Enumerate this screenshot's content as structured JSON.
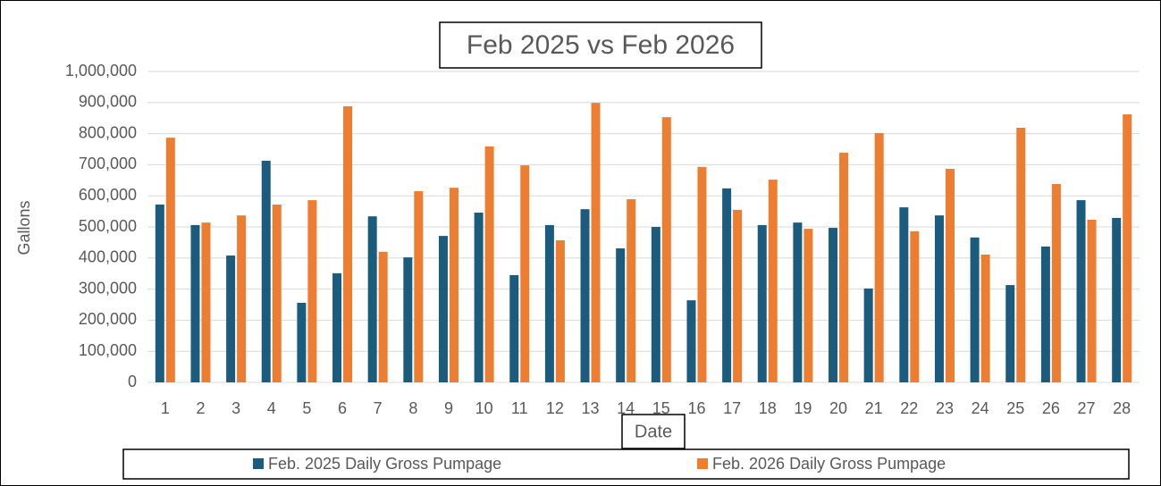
{
  "chart_data": {
    "type": "bar",
    "title": "Feb 2025 vs Feb 2026",
    "x_label": "Date",
    "y_label": "Gallons",
    "categories": [
      "1",
      "2",
      "3",
      "4",
      "5",
      "6",
      "7",
      "8",
      "9",
      "10",
      "11",
      "12",
      "13",
      "14",
      "15",
      "16",
      "17",
      "18",
      "19",
      "20",
      "21",
      "22",
      "23",
      "24",
      "25",
      "26",
      "27",
      "28"
    ],
    "series": [
      {
        "name": "Feb. 2025 Daily Gross Pumpage",
        "color": "#1b5c7e",
        "values": [
          572000,
          506000,
          408000,
          713000,
          256000,
          351000,
          534000,
          402000,
          471000,
          546000,
          345000,
          506000,
          557000,
          431000,
          500000,
          264000,
          624000,
          506000,
          514000,
          497000,
          302000,
          563000,
          537000,
          466000,
          313000,
          437000,
          586000,
          529000
        ]
      },
      {
        "name": "Feb. 2026 Daily Gross Pumpage",
        "color": "#ed7d31",
        "values": [
          787000,
          514000,
          537000,
          572000,
          586000,
          888000,
          420000,
          615000,
          626000,
          759000,
          698000,
          457000,
          899000,
          589000,
          853000,
          693000,
          555000,
          652000,
          494000,
          739000,
          802000,
          486000,
          687000,
          411000,
          819000,
          638000,
          523000,
          862000
        ]
      }
    ],
    "ylim": [
      0,
      1000000
    ],
    "yticks": [
      0,
      {
        "value": 100000,
        "label": "100,000"
      },
      {
        "value": 200000,
        "label": "200,000"
      },
      {
        "value": 300000,
        "label": "300,000"
      },
      {
        "value": 400000,
        "label": "400,000"
      },
      {
        "value": 500000,
        "label": "500,000"
      },
      {
        "value": 600000,
        "label": "600,000"
      },
      {
        "value": 700000,
        "label": "700,000"
      },
      {
        "value": 800000,
        "label": "800,000"
      },
      {
        "value": 900000,
        "label": "900,000"
      },
      {
        "value": 1000000,
        "label": "1,000,000"
      }
    ],
    "grid": true,
    "legend": "bottom"
  }
}
